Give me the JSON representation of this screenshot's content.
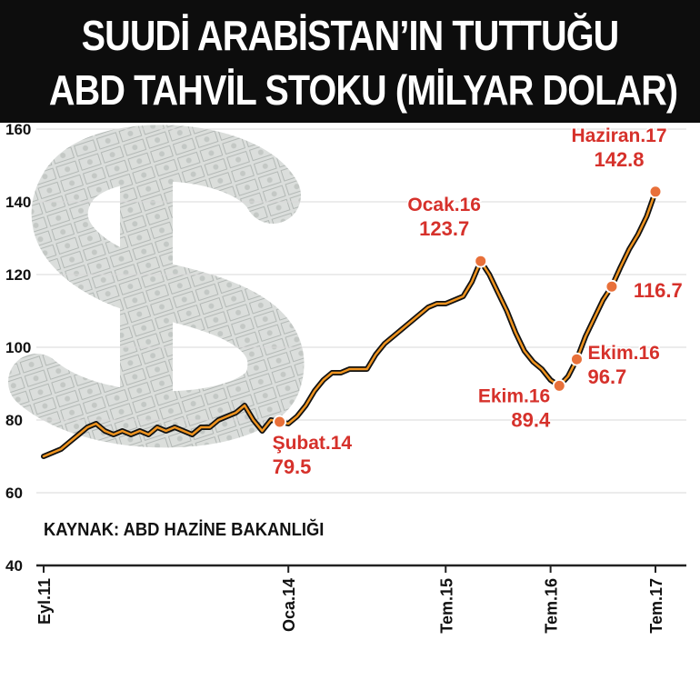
{
  "title": {
    "line1": "SUUDİ ARABİSTAN’IN TUTTUĞU",
    "line2": "ABD TAHVİL STOKU (MİLYAR DOLAR)"
  },
  "source": "KAYNAK: ABD HAZİNE BAKANLIĞI",
  "colors": {
    "line": "#f0941f",
    "line_outline": "#111111",
    "marker": "#e8703a",
    "label": "#d6312b",
    "grid": "#d8d8d8"
  },
  "chart_data": {
    "type": "line",
    "ylim": [
      40,
      160
    ],
    "yticks": [
      40,
      60,
      80,
      100,
      120,
      140,
      160
    ],
    "xticks": [
      {
        "label": "Eyl.11",
        "idx": 0
      },
      {
        "label": "Oca.14",
        "idx": 28
      },
      {
        "label": "Tem.15",
        "idx": 46
      },
      {
        "label": "Tem.16",
        "idx": 58
      },
      {
        "label": "Tem.17",
        "idx": 70
      }
    ],
    "values": [
      70,
      71,
      72,
      74,
      76,
      78,
      79,
      77,
      76,
      77,
      76,
      77,
      76,
      78,
      77,
      78,
      77,
      76,
      78,
      78,
      80,
      81,
      82,
      84,
      80,
      77,
      80,
      79.5,
      79,
      81,
      84,
      88,
      91,
      93,
      93,
      94,
      94,
      94,
      98,
      101,
      103,
      105,
      107,
      109,
      111,
      112,
      112,
      113,
      114,
      118,
      123.7,
      120,
      115,
      110,
      104,
      99,
      96,
      94,
      91,
      89.4,
      92,
      96.7,
      103,
      108,
      113,
      116.7,
      122,
      127,
      131,
      136,
      142.8
    ],
    "annotations": [
      {
        "idx": 27,
        "name": "Şubat.14",
        "value": "79.5"
      },
      {
        "idx": 50,
        "name": "Ocak.16",
        "value": "123.7"
      },
      {
        "idx": 59,
        "name": "Ekim.16",
        "value": "89.4"
      },
      {
        "idx": 61,
        "name": "Ekim.16",
        "value": "96.7"
      },
      {
        "idx": 65,
        "name": "",
        "value": "116.7"
      },
      {
        "idx": 70,
        "name": "Haziran.17",
        "value": "142.8"
      }
    ]
  }
}
